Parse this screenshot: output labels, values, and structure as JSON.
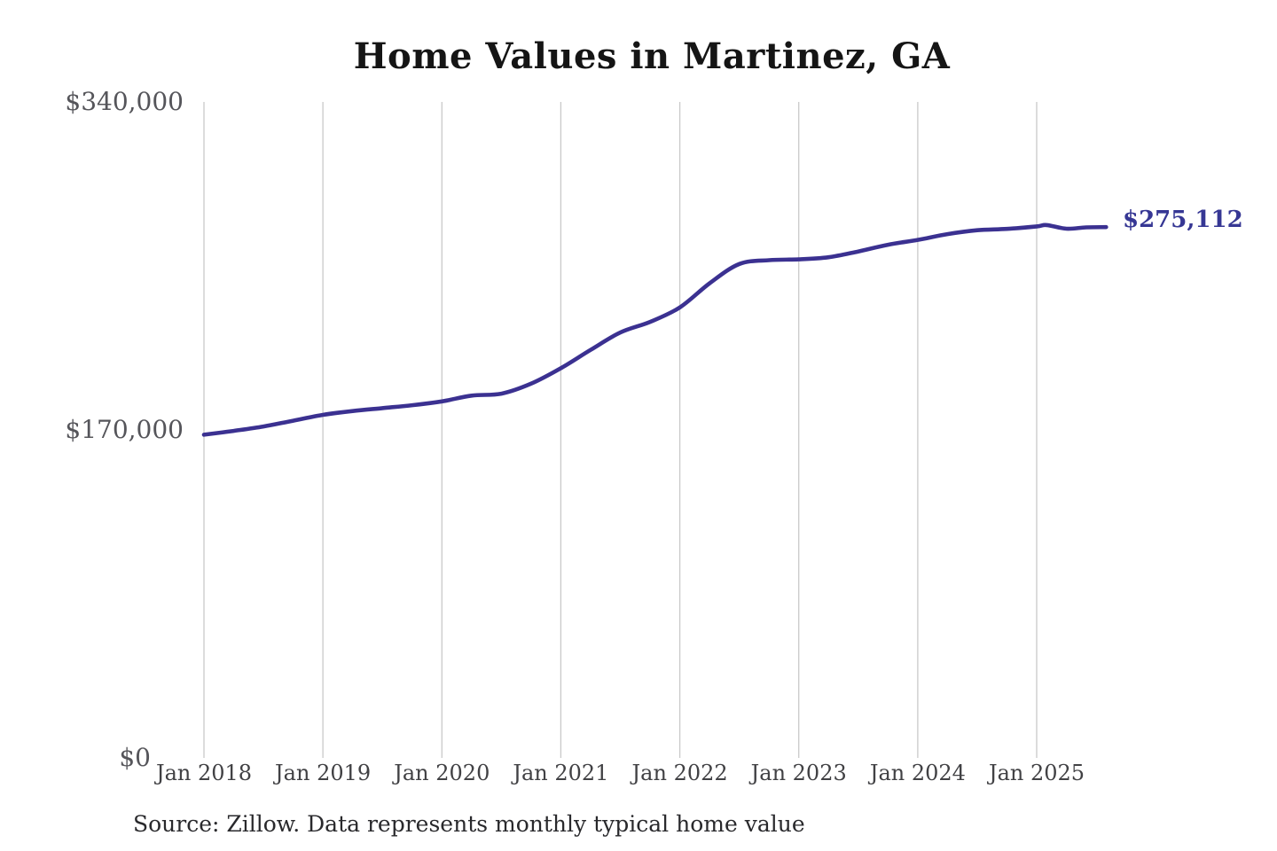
{
  "title": "Home Values in Martinez, GA",
  "source_note": "Source: Zillow. Data represents monthly typical home value",
  "colors": {
    "line": "#3b3191",
    "end_label": "#363794",
    "grid": "#c9c9c9",
    "title_text": "#151515",
    "y_tick_text": "#55555a",
    "x_tick_text": "#414144",
    "source_text": "#29292c",
    "background": "#ffffff"
  },
  "chart_data": {
    "type": "line",
    "title": "Home Values in Martinez, GA",
    "unit": "USD",
    "ylabel": "",
    "xlabel": "",
    "ylim": [
      0,
      340000
    ],
    "grid": "vertical-only",
    "legend": "none",
    "final_value": 275112,
    "final_value_label": "$275,112",
    "y_ticks": [
      {
        "label": "$340,000",
        "value": 340000
      },
      {
        "label": "$170,000",
        "value": 170000
      },
      {
        "label": "$0",
        "value": 0
      }
    ],
    "x_ticks": [
      {
        "label": "Jan 2018",
        "month": 0
      },
      {
        "label": "Jan 2019",
        "month": 12
      },
      {
        "label": "Jan 2020",
        "month": 24
      },
      {
        "label": "Jan 2021",
        "month": 36
      },
      {
        "label": "Jan 2022",
        "month": 48
      },
      {
        "label": "Jan 2023",
        "month": 60
      },
      {
        "label": "Jan 2024",
        "month": 72
      },
      {
        "label": "Jan 2025",
        "month": 84
      }
    ],
    "series": [
      {
        "name": "Monthly typical home value",
        "points": [
          {
            "date": "2018-01",
            "value": 167500
          },
          {
            "date": "2018-04",
            "value": 169500
          },
          {
            "date": "2018-07",
            "value": 171800
          },
          {
            "date": "2018-10",
            "value": 174800
          },
          {
            "date": "2019-01",
            "value": 177800
          },
          {
            "date": "2019-04",
            "value": 179800
          },
          {
            "date": "2019-07",
            "value": 181300
          },
          {
            "date": "2019-10",
            "value": 182800
          },
          {
            "date": "2020-01",
            "value": 184800
          },
          {
            "date": "2020-04",
            "value": 187800
          },
          {
            "date": "2020-07",
            "value": 188800
          },
          {
            "date": "2020-10",
            "value": 194000
          },
          {
            "date": "2021-01",
            "value": 202000
          },
          {
            "date": "2021-04",
            "value": 211500
          },
          {
            "date": "2021-07",
            "value": 220500
          },
          {
            "date": "2021-10",
            "value": 226000
          },
          {
            "date": "2022-01",
            "value": 233500
          },
          {
            "date": "2022-04",
            "value": 246000
          },
          {
            "date": "2022-07",
            "value": 256000
          },
          {
            "date": "2022-10",
            "value": 258000
          },
          {
            "date": "2023-01",
            "value": 258400
          },
          {
            "date": "2023-04",
            "value": 259500
          },
          {
            "date": "2023-07",
            "value": 262500
          },
          {
            "date": "2023-10",
            "value": 266000
          },
          {
            "date": "2024-01",
            "value": 268500
          },
          {
            "date": "2024-04",
            "value": 271500
          },
          {
            "date": "2024-07",
            "value": 273500
          },
          {
            "date": "2024-10",
            "value": 274200
          },
          {
            "date": "2025-01",
            "value": 275500
          },
          {
            "date": "2025-02",
            "value": 276200
          },
          {
            "date": "2025-04",
            "value": 274300
          },
          {
            "date": "2025-06",
            "value": 275000
          },
          {
            "date": "2025-08",
            "value": 275112
          }
        ]
      }
    ]
  }
}
